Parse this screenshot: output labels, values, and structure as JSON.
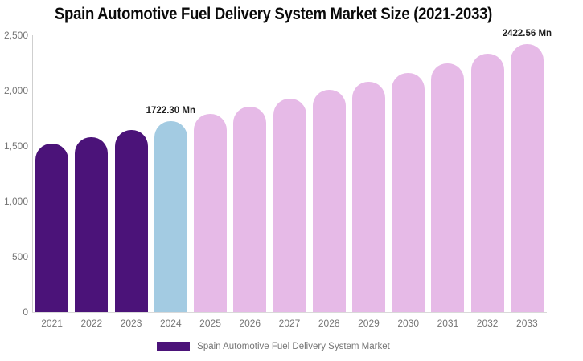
{
  "chart": {
    "title": "Spain Automotive Fuel Delivery System Market Size (2021-2033)",
    "legend": {
      "label": "Spain Automotive Fuel Delivery System Market",
      "swatch_color": "#4B1379"
    },
    "colors": {
      "historical_bar": "#4B1379",
      "base_year_bar": "#A3CBE2",
      "forecast_bar": "#E6BAE7",
      "axis_line": "#cfcfcf",
      "tick_text": "#757575",
      "annotation_text": "#1f1f1f",
      "title_text": "#0a0a0a"
    }
  },
  "chart_data": {
    "type": "bar",
    "title": "Spain Automotive Fuel Delivery System Market Size (2021-2033)",
    "categories": [
      "2021",
      "2022",
      "2023",
      "2024",
      "2025",
      "2026",
      "2027",
      "2028",
      "2029",
      "2030",
      "2031",
      "2032",
      "2033"
    ],
    "series": [
      {
        "name": "Spain Automotive Fuel Delivery System Market",
        "values": [
          1520,
          1578,
          1646,
          1722.3,
          1789,
          1858,
          1930,
          2004,
          2082,
          2162,
          2246,
          2333,
          2422.56
        ]
      }
    ],
    "bar_colors": [
      "#4B1379",
      "#4B1379",
      "#4B1379",
      "#A3CBE2",
      "#E6BAE7",
      "#E6BAE7",
      "#E6BAE7",
      "#E6BAE7",
      "#E6BAE7",
      "#E6BAE7",
      "#E6BAE7",
      "#E6BAE7",
      "#E6BAE7"
    ],
    "y_ticks": {
      "values": [
        0,
        500,
        1000,
        1500,
        2000,
        2500
      ],
      "labels": [
        "0",
        "500",
        "1,000",
        "1,500",
        "2,000",
        "2,500"
      ]
    },
    "ylim": [
      0,
      2500
    ],
    "xlabel": "",
    "ylabel": "",
    "grid": false,
    "legend_position": "bottom",
    "annotations": [
      {
        "category": "2024",
        "text": "1722.30 Mn"
      },
      {
        "category": "2033",
        "text": "2422.56 Mn"
      }
    ]
  }
}
